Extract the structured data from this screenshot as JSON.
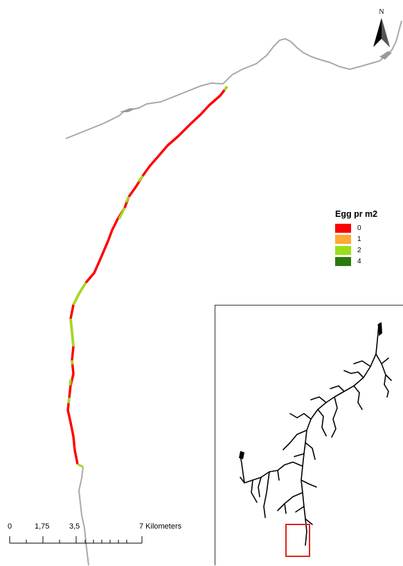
{
  "map": {
    "north_label": "N",
    "legend": {
      "title": "Egg pr m2",
      "items": [
        {
          "label": "0",
          "color": "#ff0000"
        },
        {
          "label": "1",
          "color": "#ffa833"
        },
        {
          "label": "2",
          "color": "#9bde1c"
        },
        {
          "label": "4",
          "color": "#2b7a0b"
        }
      ]
    },
    "scalebar": {
      "labels": [
        "0",
        "1,75",
        "3,5",
        "7 Kilometers"
      ]
    },
    "colors": {
      "river_main": "#a8a8a8",
      "river_network": "#000000",
      "highlight_box": "#e2231a"
    }
  }
}
